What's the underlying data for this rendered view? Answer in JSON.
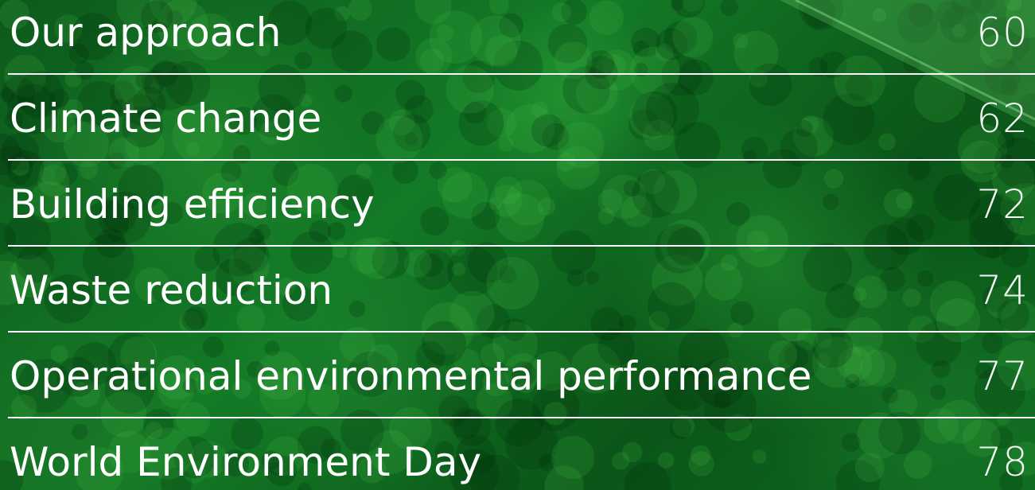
{
  "entries": [
    {
      "title": "Our approach",
      "page": "60"
    },
    {
      "title": "Climate change",
      "page": "62"
    },
    {
      "title": "Building efficiency",
      "page": "72"
    },
    {
      "title": "Waste reduction",
      "page": "74"
    },
    {
      "title": "Operational environmental performance",
      "page": "77"
    },
    {
      "title": "World Environment Day",
      "page": "78"
    }
  ]
}
